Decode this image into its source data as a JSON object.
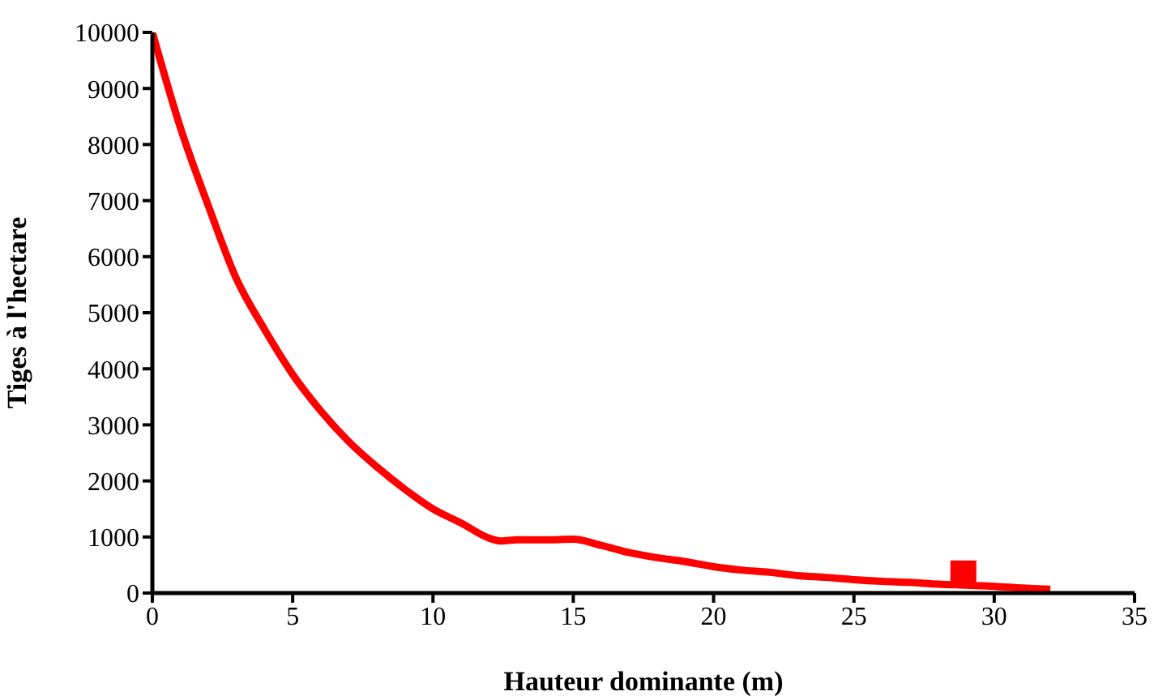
{
  "chart_data": {
    "type": "line",
    "xlabel": "Hauteur dominante (m)",
    "ylabel": "Tiges à l'hectare",
    "xlim": [
      0,
      35
    ],
    "xticks": [
      0,
      5,
      10,
      15,
      20,
      25,
      30,
      35
    ],
    "ylim": [
      0,
      10000
    ],
    "yticks": [
      0,
      1000,
      2000,
      3000,
      4000,
      5000,
      6000,
      7000,
      8000,
      9000,
      10000
    ],
    "grid": false,
    "legend": false,
    "series": [
      {
        "color": "#ff0000",
        "marker": "none",
        "line_style": "solid",
        "x": [
          0,
          1,
          2,
          3,
          4,
          5,
          6,
          7,
          8,
          9,
          10,
          11,
          12,
          12.4,
          13,
          14,
          15,
          16,
          17,
          18,
          19,
          20,
          21,
          22,
          23,
          24,
          25,
          26,
          27,
          28,
          29,
          30,
          31,
          32
        ],
        "values": [
          10000,
          8300,
          6900,
          5600,
          4700,
          3900,
          3250,
          2700,
          2250,
          1850,
          1500,
          1250,
          980,
          930,
          950,
          950,
          960,
          850,
          720,
          630,
          560,
          470,
          410,
          370,
          310,
          280,
          240,
          210,
          190,
          160,
          140,
          120,
          90,
          70
        ]
      },
      {
        "type": "scatter",
        "color": "#ff0000",
        "marker": "square",
        "x": [
          28.9
        ],
        "values": [
          350
        ]
      }
    ]
  }
}
